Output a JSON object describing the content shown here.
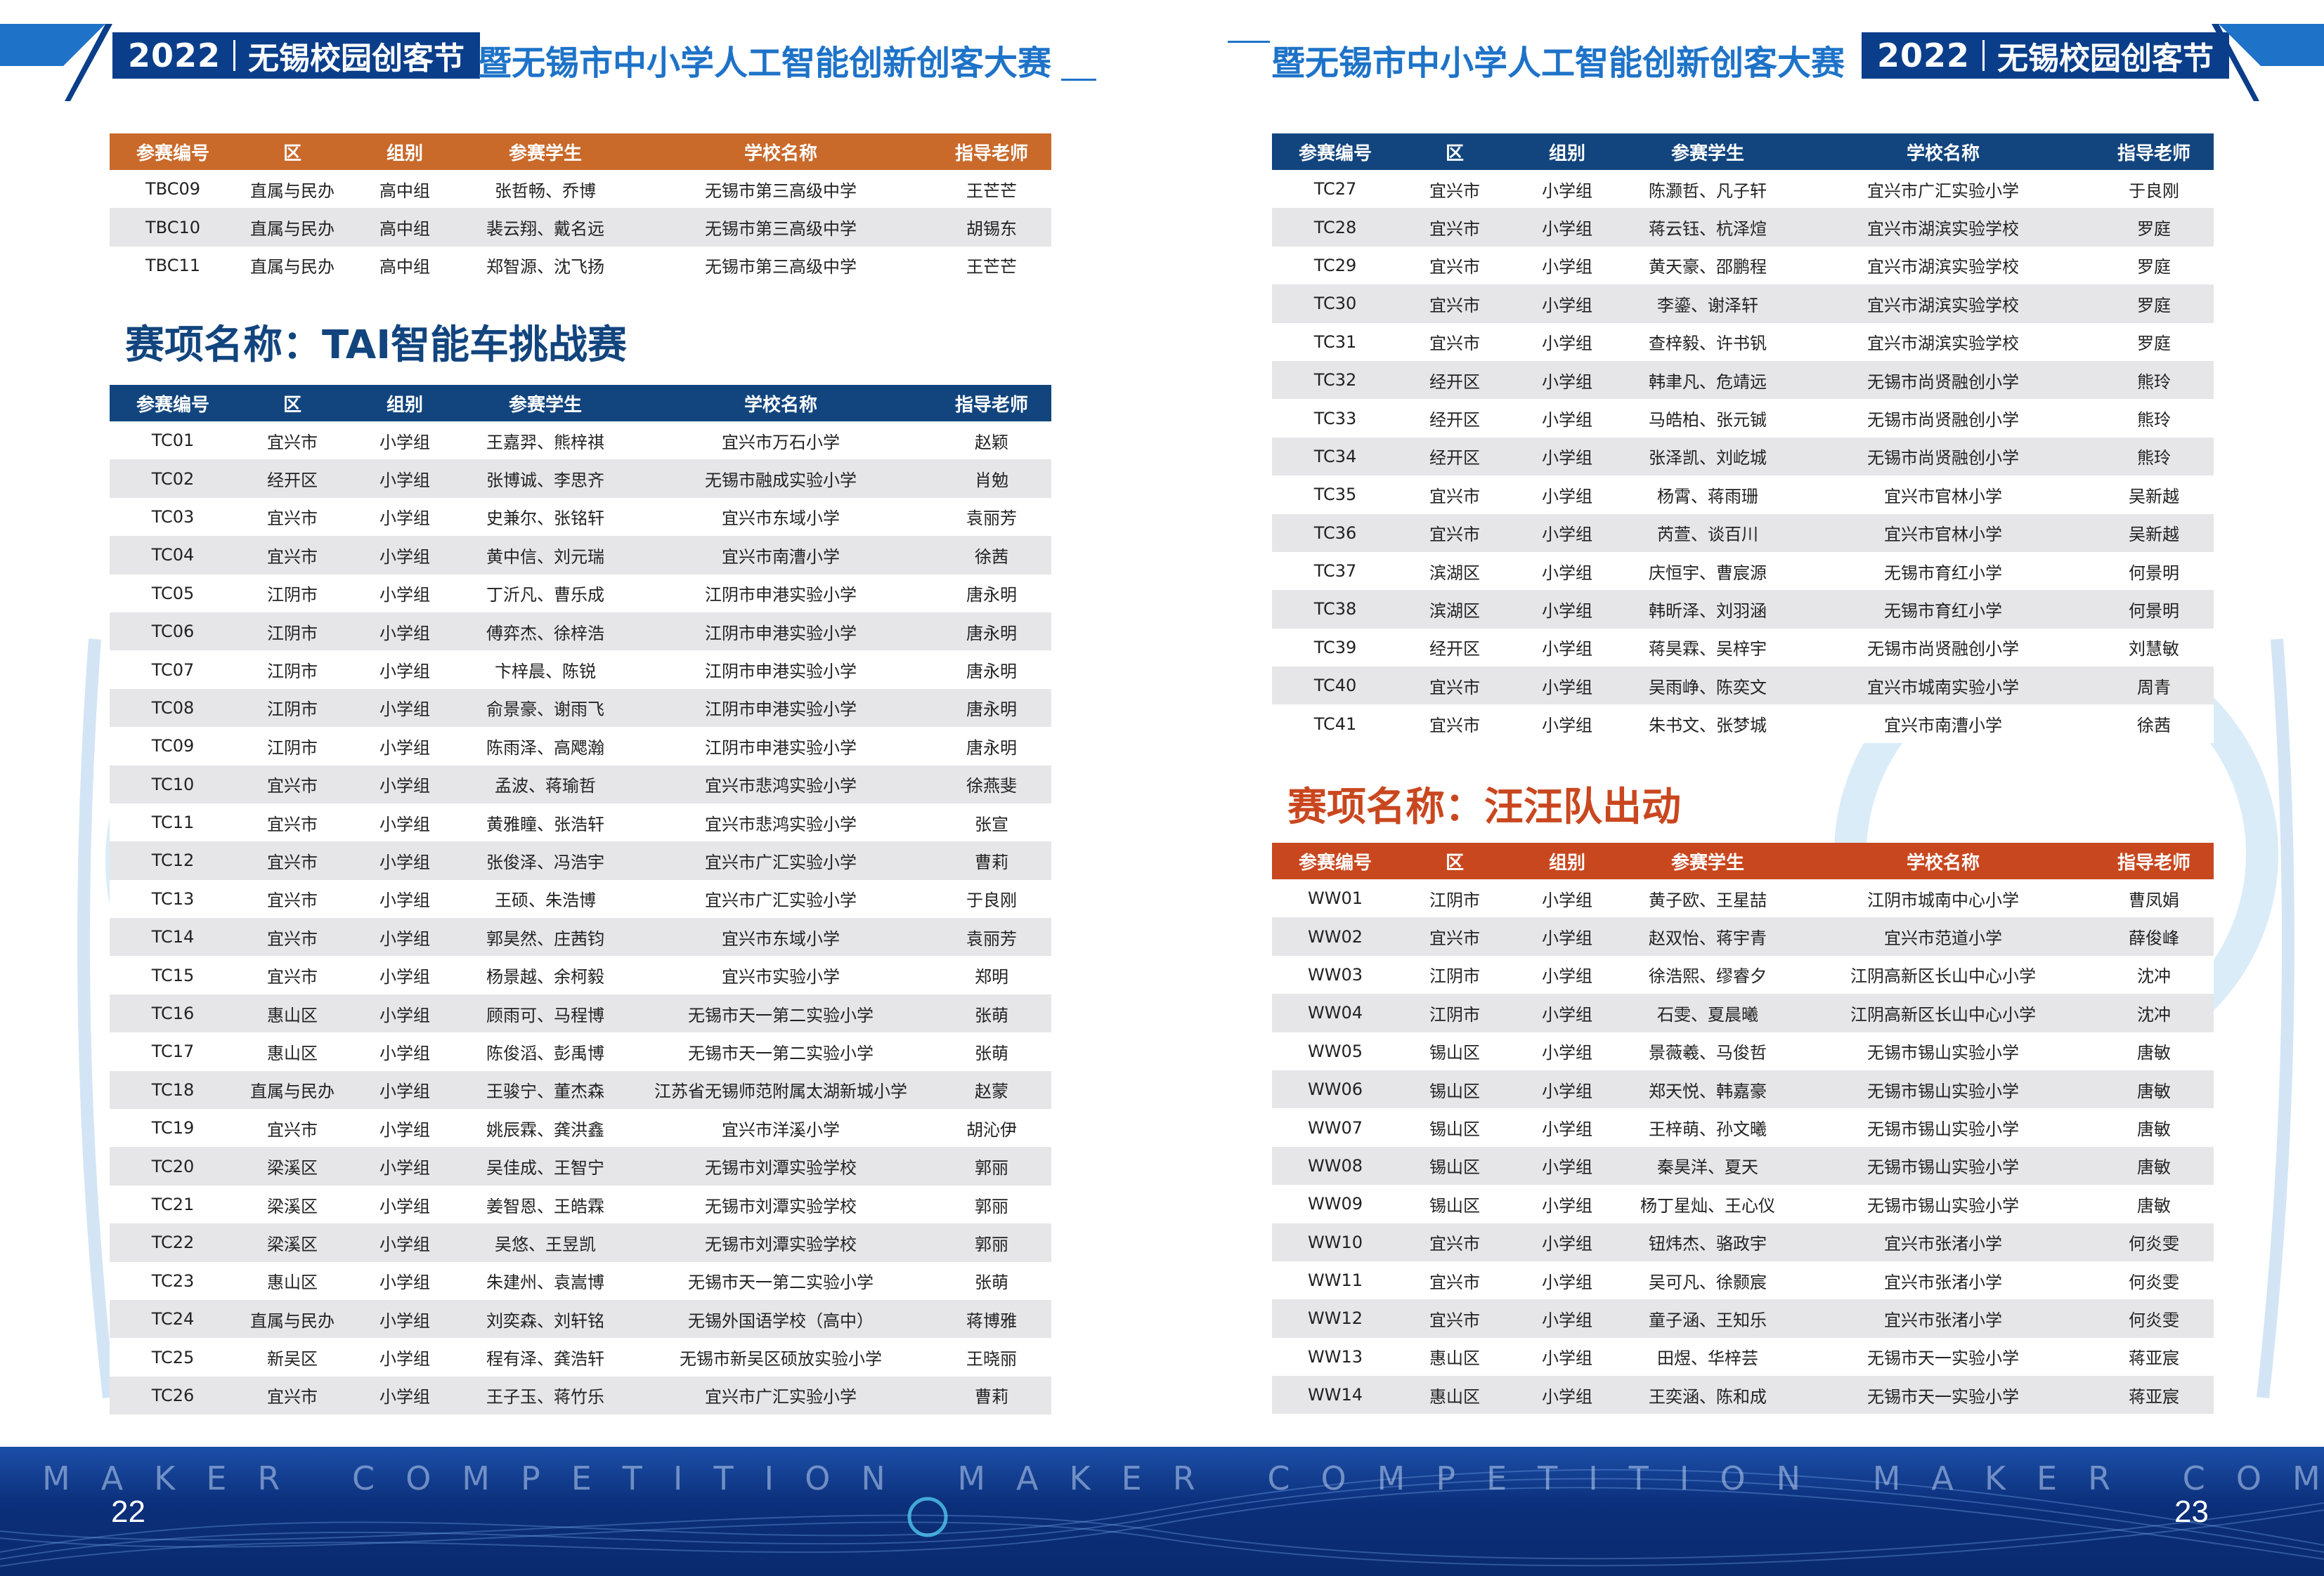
{
  "header": {
    "year": "2022",
    "festival": "无锡校园创客节",
    "competition": "暨无锡市中小学人工智能创新创客大赛"
  },
  "columns": [
    "参赛编号",
    "区",
    "组别",
    "参赛学生",
    "学校名称",
    "指导老师"
  ],
  "table_tbc": [
    [
      "TBC09",
      "直属与民办",
      "高中组",
      "张哲畅、乔博",
      "无锡市第三高级中学",
      "王芒芒"
    ],
    [
      "TBC10",
      "直属与民办",
      "高中组",
      "裴云翔、戴名远",
      "无锡市第三高级中学",
      "胡锡东"
    ],
    [
      "TBC11",
      "直属与民办",
      "高中组",
      "郑智源、沈飞扬",
      "无锡市第三高级中学",
      "王芒芒"
    ]
  ],
  "section_tai": "赛项名称：TAI智能车挑战赛",
  "table_tc_left": [
    [
      "TC01",
      "宜兴市",
      "小学组",
      "王嘉羿、熊梓祺",
      "宜兴市万石小学",
      "赵颖"
    ],
    [
      "TC02",
      "经开区",
      "小学组",
      "张博诚、李思齐",
      "无锡市融成实验小学",
      "肖勉"
    ],
    [
      "TC03",
      "宜兴市",
      "小学组",
      "史兼尔、张铭轩",
      "宜兴市东域小学",
      "袁丽芳"
    ],
    [
      "TC04",
      "宜兴市",
      "小学组",
      "黄中信、刘元瑞",
      "宜兴市南漕小学",
      "徐茜"
    ],
    [
      "TC05",
      "江阴市",
      "小学组",
      "丁沂凡、曹乐成",
      "江阴市申港实验小学",
      "唐永明"
    ],
    [
      "TC06",
      "江阴市",
      "小学组",
      "傅弈杰、徐梓浩",
      "江阴市申港实验小学",
      "唐永明"
    ],
    [
      "TC07",
      "江阴市",
      "小学组",
      "卞梓晨、陈锐",
      "江阴市申港实验小学",
      "唐永明"
    ],
    [
      "TC08",
      "江阴市",
      "小学组",
      "俞景豪、谢雨飞",
      "江阴市申港实验小学",
      "唐永明"
    ],
    [
      "TC09",
      "江阴市",
      "小学组",
      "陈雨泽、高飔瀚",
      "江阴市申港实验小学",
      "唐永明"
    ],
    [
      "TC10",
      "宜兴市",
      "小学组",
      "孟波、蒋瑜哲",
      "宜兴市悲鸿实验小学",
      "徐燕斐"
    ],
    [
      "TC11",
      "宜兴市",
      "小学组",
      "黄雅瞳、张浩轩",
      "宜兴市悲鸿实验小学",
      "张宣"
    ],
    [
      "TC12",
      "宜兴市",
      "小学组",
      "张俊泽、冯浩宇",
      "宜兴市广汇实验小学",
      "曹莉"
    ],
    [
      "TC13",
      "宜兴市",
      "小学组",
      "王硕、朱浩博",
      "宜兴市广汇实验小学",
      "于良刚"
    ],
    [
      "TC14",
      "宜兴市",
      "小学组",
      "郭昊然、庄茜钧",
      "宜兴市东域小学",
      "袁丽芳"
    ],
    [
      "TC15",
      "宜兴市",
      "小学组",
      "杨景越、余柯毅",
      "宜兴市实验小学",
      "郑明"
    ],
    [
      "TC16",
      "惠山区",
      "小学组",
      "顾雨可、马程博",
      "无锡市天一第二实验小学",
      "张萌"
    ],
    [
      "TC17",
      "惠山区",
      "小学组",
      "陈俊滔、彭禹博",
      "无锡市天一第二实验小学",
      "张萌"
    ],
    [
      "TC18",
      "直属与民办",
      "小学组",
      "王骏宁、董杰森",
      "江苏省无锡师范附属太湖新城小学",
      "赵蒙"
    ],
    [
      "TC19",
      "宜兴市",
      "小学组",
      "姚辰霖、龚洪鑫",
      "宜兴市洋溪小学",
      "胡沁伊"
    ],
    [
      "TC20",
      "梁溪区",
      "小学组",
      "吴佳成、王智宁",
      "无锡市刘潭实验学校",
      "郭丽"
    ],
    [
      "TC21",
      "梁溪区",
      "小学组",
      "姜智恩、王皓霖",
      "无锡市刘潭实验学校",
      "郭丽"
    ],
    [
      "TC22",
      "梁溪区",
      "小学组",
      "吴悠、王昱凯",
      "无锡市刘潭实验学校",
      "郭丽"
    ],
    [
      "TC23",
      "惠山区",
      "小学组",
      "朱建州、袁嵩博",
      "无锡市天一第二实验小学",
      "张萌"
    ],
    [
      "TC24",
      "直属与民办",
      "小学组",
      "刘奕森、刘轩铭",
      "无锡外国语学校（高中）",
      "蒋博雅"
    ],
    [
      "TC25",
      "新吴区",
      "小学组",
      "程有泽、龚浩轩",
      "无锡市新吴区硕放实验小学",
      "王晓丽"
    ],
    [
      "TC26",
      "宜兴市",
      "小学组",
      "王子玉、蒋竹乐",
      "宜兴市广汇实验小学",
      "曹莉"
    ]
  ],
  "table_tc_right": [
    [
      "TC27",
      "宜兴市",
      "小学组",
      "陈灏哲、凡子轩",
      "宜兴市广汇实验小学",
      "于良刚"
    ],
    [
      "TC28",
      "宜兴市",
      "小学组",
      "蒋云钰、杭泽煊",
      "宜兴市湖滨实验学校",
      "罗庭"
    ],
    [
      "TC29",
      "宜兴市",
      "小学组",
      "黄天豪、邵鹏程",
      "宜兴市湖滨实验学校",
      "罗庭"
    ],
    [
      "TC30",
      "宜兴市",
      "小学组",
      "李鎏、谢泽轩",
      "宜兴市湖滨实验学校",
      "罗庭"
    ],
    [
      "TC31",
      "宜兴市",
      "小学组",
      "查梓毅、许书钒",
      "宜兴市湖滨实验学校",
      "罗庭"
    ],
    [
      "TC32",
      "经开区",
      "小学组",
      "韩聿凡、危靖远",
      "无锡市尚贤融创小学",
      "熊玲"
    ],
    [
      "TC33",
      "经开区",
      "小学组",
      "马皓柏、张元铖",
      "无锡市尚贤融创小学",
      "熊玲"
    ],
    [
      "TC34",
      "经开区",
      "小学组",
      "张泽凯、刘屹城",
      "无锡市尚贤融创小学",
      "熊玲"
    ],
    [
      "TC35",
      "宜兴市",
      "小学组",
      "杨霄、蒋雨珊",
      "宜兴市官林小学",
      "吴新越"
    ],
    [
      "TC36",
      "宜兴市",
      "小学组",
      "芮萱、谈百川",
      "宜兴市官林小学",
      "吴新越"
    ],
    [
      "TC37",
      "滨湖区",
      "小学组",
      "庆恒宇、曹宸源",
      "无锡市育红小学",
      "何景明"
    ],
    [
      "TC38",
      "滨湖区",
      "小学组",
      "韩昕泽、刘羽涵",
      "无锡市育红小学",
      "何景明"
    ],
    [
      "TC39",
      "经开区",
      "小学组",
      "蒋昊霖、吴梓宇",
      "无锡市尚贤融创小学",
      "刘慧敏"
    ],
    [
      "TC40",
      "宜兴市",
      "小学组",
      "吴雨峥、陈奕文",
      "宜兴市城南实验小学",
      "周青"
    ],
    [
      "TC41",
      "宜兴市",
      "小学组",
      "朱书文、张梦城",
      "宜兴市南漕小学",
      "徐茜"
    ]
  ],
  "section_ww": "赛项名称：汪汪队出动",
  "table_ww": [
    [
      "WW01",
      "江阴市",
      "小学组",
      "黄子欧、王星喆",
      "江阴市城南中心小学",
      "曹凤娟"
    ],
    [
      "WW02",
      "宜兴市",
      "小学组",
      "赵双怡、蒋宇青",
      "宜兴市范道小学",
      "薛俊峰"
    ],
    [
      "WW03",
      "江阴市",
      "小学组",
      "徐浩熙、缪睿夕",
      "江阴高新区长山中心小学",
      "沈冲"
    ],
    [
      "WW04",
      "江阴市",
      "小学组",
      "石雯、夏晨曦",
      "江阴高新区长山中心小学",
      "沈冲"
    ],
    [
      "WW05",
      "锡山区",
      "小学组",
      "景薇羲、马俊哲",
      "无锡市锡山实验小学",
      "唐敏"
    ],
    [
      "WW06",
      "锡山区",
      "小学组",
      "郑天悦、韩嘉豪",
      "无锡市锡山实验小学",
      "唐敏"
    ],
    [
      "WW07",
      "锡山区",
      "小学组",
      "王梓萌、孙文曦",
      "无锡市锡山实验小学",
      "唐敏"
    ],
    [
      "WW08",
      "锡山区",
      "小学组",
      "秦昊洋、夏天",
      "无锡市锡山实验小学",
      "唐敏"
    ],
    [
      "WW09",
      "锡山区",
      "小学组",
      "杨丁星灿、王心仪",
      "无锡市锡山实验小学",
      "唐敏"
    ],
    [
      "WW10",
      "宜兴市",
      "小学组",
      "钮炜杰、骆政宇",
      "宜兴市张渚小学",
      "何炎雯"
    ],
    [
      "WW11",
      "宜兴市",
      "小学组",
      "吴可凡、徐颢宸",
      "宜兴市张渚小学",
      "何炎雯"
    ],
    [
      "WW12",
      "宜兴市",
      "小学组",
      "童子涵、王知乐",
      "宜兴市张渚小学",
      "何炎雯"
    ],
    [
      "WW13",
      "惠山区",
      "小学组",
      "田煜、华梓芸",
      "无锡市天一实验小学",
      "蒋亚宸"
    ],
    [
      "WW14",
      "惠山区",
      "小学组",
      "王奕涵、陈和成",
      "无锡市天一实验小学",
      "蒋亚宸"
    ]
  ],
  "footer": {
    "slogan": "MAKER COMPETITION MAKER COMPETITION MAKER COMPETITION",
    "page_left": "22",
    "page_right": "23"
  },
  "colors": {
    "orange_header": "#c9692a",
    "navy_header": "#12457e",
    "red_header": "#c9471f",
    "title_navy": "#12457e",
    "title_red": "#c9471f",
    "banner_blue": "#0a3e8a",
    "accent_blue": "#1e73c8"
  }
}
